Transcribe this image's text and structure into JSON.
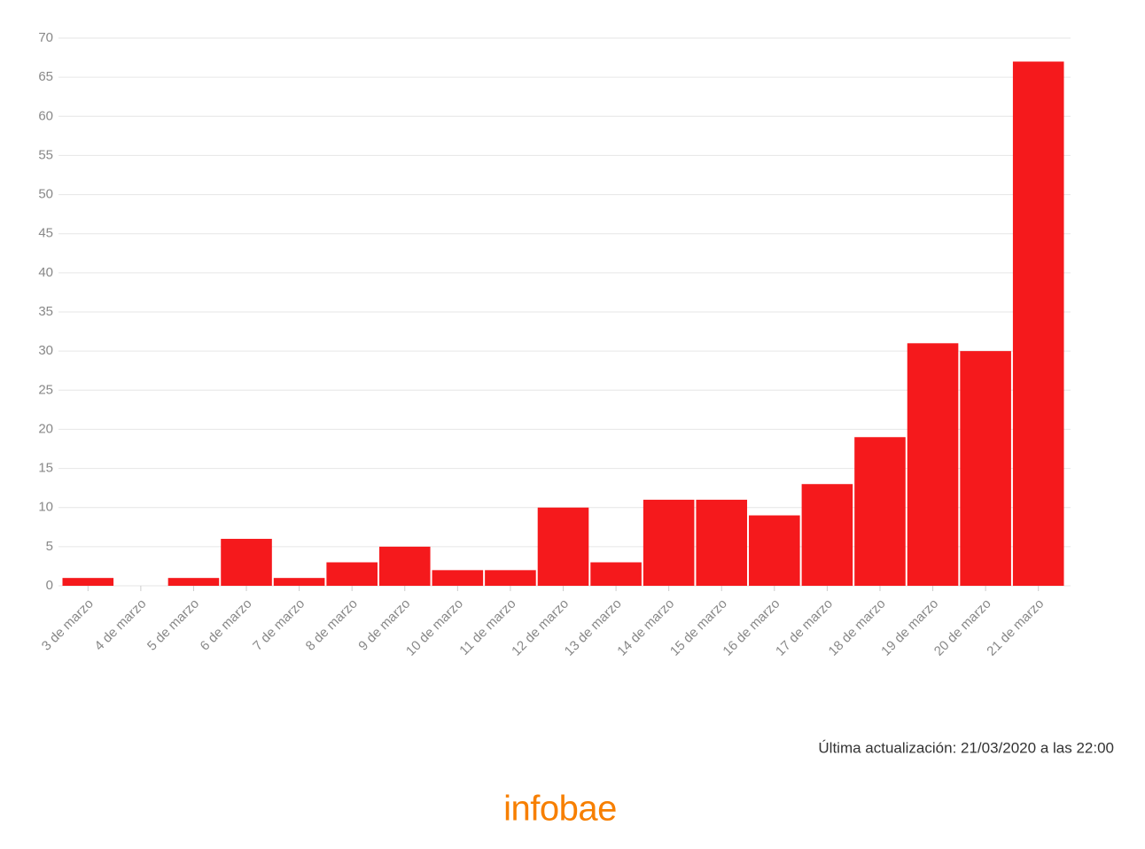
{
  "chart_data": {
    "type": "bar",
    "categories": [
      "3 de marzo",
      "4 de marzo",
      "5 de marzo",
      "6 de marzo",
      "7 de marzo",
      "8 de marzo",
      "9 de marzo",
      "10 de marzo",
      "11 de marzo",
      "12 de marzo",
      "13 de marzo",
      "14 de marzo",
      "15 de marzo",
      "16 de marzo",
      "17 de marzo",
      "18 de marzo",
      "19 de marzo",
      "20 de marzo",
      "21 de marzo"
    ],
    "values": [
      1,
      0,
      1,
      6,
      1,
      3,
      5,
      2,
      2,
      10,
      3,
      11,
      11,
      9,
      13,
      19,
      31,
      30,
      67
    ],
    "color": "#f5191c",
    "ylim": [
      0,
      70
    ],
    "yticks": [
      0,
      5,
      10,
      15,
      20,
      25,
      30,
      35,
      40,
      45,
      50,
      55,
      60,
      65,
      70
    ],
    "grid": true,
    "note": "Última actualización: 21/03/2020 a las 22:00",
    "source": "infobae"
  }
}
